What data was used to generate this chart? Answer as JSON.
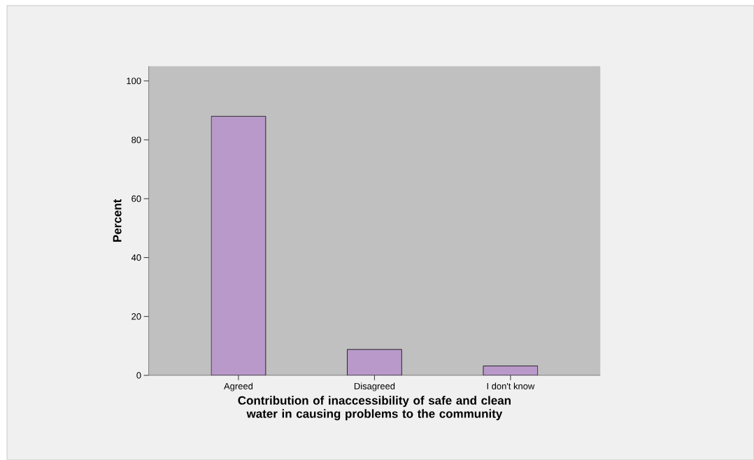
{
  "chart_data": {
    "type": "bar",
    "xlabel": "Contribution of inaccessibility of safe and clean water in causing problems to the community",
    "ylabel": "Percent",
    "categories": [
      "Agreed",
      "Disagreed",
      "I don't know"
    ],
    "values": [
      88.0,
      8.8,
      3.2
    ],
    "color": "#b899c9",
    "ylim": [
      0,
      105
    ],
    "yticks": [
      0,
      20,
      40,
      60,
      80,
      100
    ]
  }
}
